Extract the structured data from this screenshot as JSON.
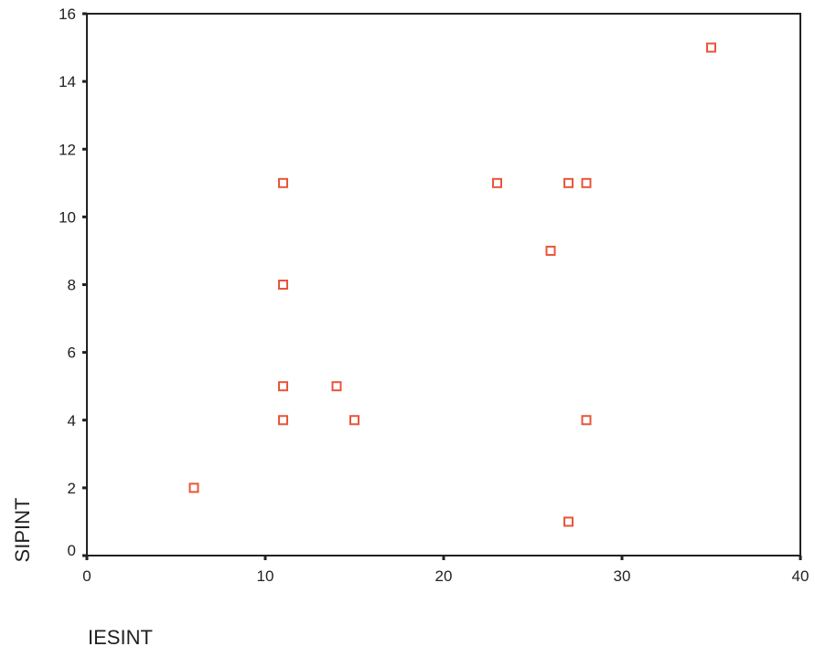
{
  "chart_data": {
    "type": "scatter",
    "xlabel": "IESINT",
    "ylabel": "SIPINT",
    "xlim": [
      0,
      40
    ],
    "ylim": [
      0,
      16
    ],
    "xticks": [
      0,
      10,
      20,
      30,
      40
    ],
    "yticks": [
      0,
      2,
      4,
      6,
      8,
      10,
      12,
      14,
      16
    ],
    "grid": false,
    "marker_color": "#e8553a",
    "points": [
      {
        "x": 6,
        "y": 2
      },
      {
        "x": 11,
        "y": 11
      },
      {
        "x": 11,
        "y": 8
      },
      {
        "x": 11,
        "y": 5
      },
      {
        "x": 11,
        "y": 4
      },
      {
        "x": 14,
        "y": 5
      },
      {
        "x": 15,
        "y": 4
      },
      {
        "x": 23,
        "y": 11
      },
      {
        "x": 26,
        "y": 9
      },
      {
        "x": 27,
        "y": 11
      },
      {
        "x": 27,
        "y": 1
      },
      {
        "x": 28,
        "y": 11
      },
      {
        "x": 28,
        "y": 4
      },
      {
        "x": 35,
        "y": 15
      }
    ]
  }
}
